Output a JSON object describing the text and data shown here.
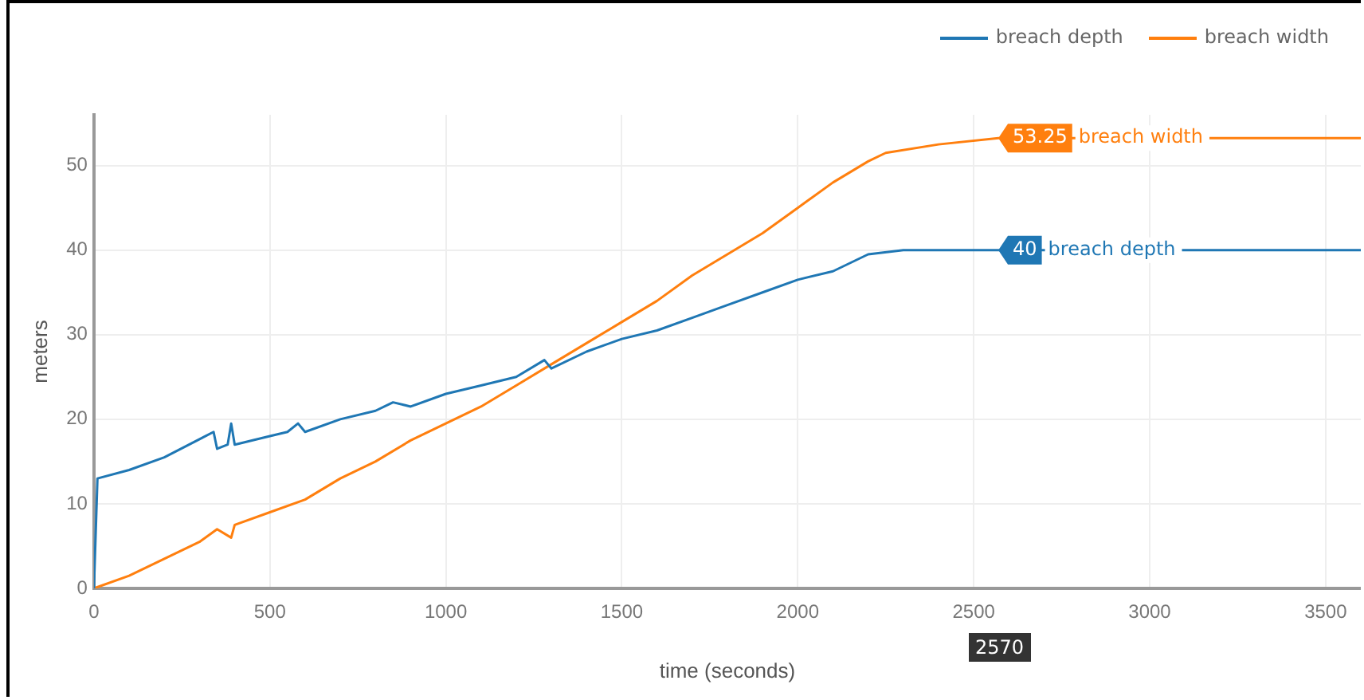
{
  "chart_data": {
    "type": "line",
    "xlabel": "time (seconds)",
    "ylabel": "meters",
    "x": [
      0,
      10,
      100,
      200,
      340,
      350,
      380,
      390,
      400,
      500,
      550,
      580,
      600,
      700,
      800,
      850,
      900,
      1000,
      1050,
      1100,
      1200,
      1280,
      1300,
      1400,
      1500,
      1600,
      1700,
      1800,
      1900,
      2000,
      2100,
      2200,
      2300,
      2570,
      3600
    ],
    "series": [
      {
        "name": "breach depth",
        "color": "#1f77b4",
        "values": [
          0,
          13,
          14,
          15.5,
          18.5,
          16.5,
          17,
          19.5,
          17,
          18,
          18.5,
          19.5,
          18.5,
          20,
          21,
          22,
          21.5,
          23,
          23.5,
          24,
          25,
          27,
          26,
          28,
          29.5,
          30.5,
          32,
          33.5,
          35,
          36.5,
          37.5,
          39.5,
          40,
          40,
          40
        ]
      },
      {
        "name": "breach width",
        "color": "#ff7f0e",
        "x": [
          0,
          100,
          200,
          300,
          350,
          390,
          400,
          500,
          600,
          700,
          800,
          900,
          1000,
          1100,
          1200,
          1300,
          1400,
          1500,
          1600,
          1700,
          1800,
          1900,
          2000,
          2100,
          2200,
          2250,
          2400,
          2570,
          3600
        ],
        "values": [
          0,
          1.5,
          3.5,
          5.5,
          7,
          6,
          7.5,
          9,
          10.5,
          13,
          15,
          17.5,
          19.5,
          21.5,
          24,
          26.5,
          29,
          31.5,
          34,
          37,
          39.5,
          42,
          45,
          48,
          50.5,
          51.5,
          52.5,
          53.25,
          53.25
        ]
      }
    ],
    "xlim": [
      0,
      3600
    ],
    "xticks": [
      0,
      500,
      1000,
      1500,
      2000,
      2500,
      3000,
      3500
    ],
    "ylim": [
      0,
      56
    ],
    "yticks": [
      0,
      10,
      20,
      30,
      40,
      50
    ],
    "annotations": [
      {
        "text": "53.25 breach width",
        "x": 2570,
        "y": 53.25
      },
      {
        "text": "40 breach depth",
        "x": 2570,
        "y": 40
      },
      "2570"
    ],
    "grid": true,
    "legend": "top right",
    "marker": "none",
    "line_style": "solid"
  }
}
